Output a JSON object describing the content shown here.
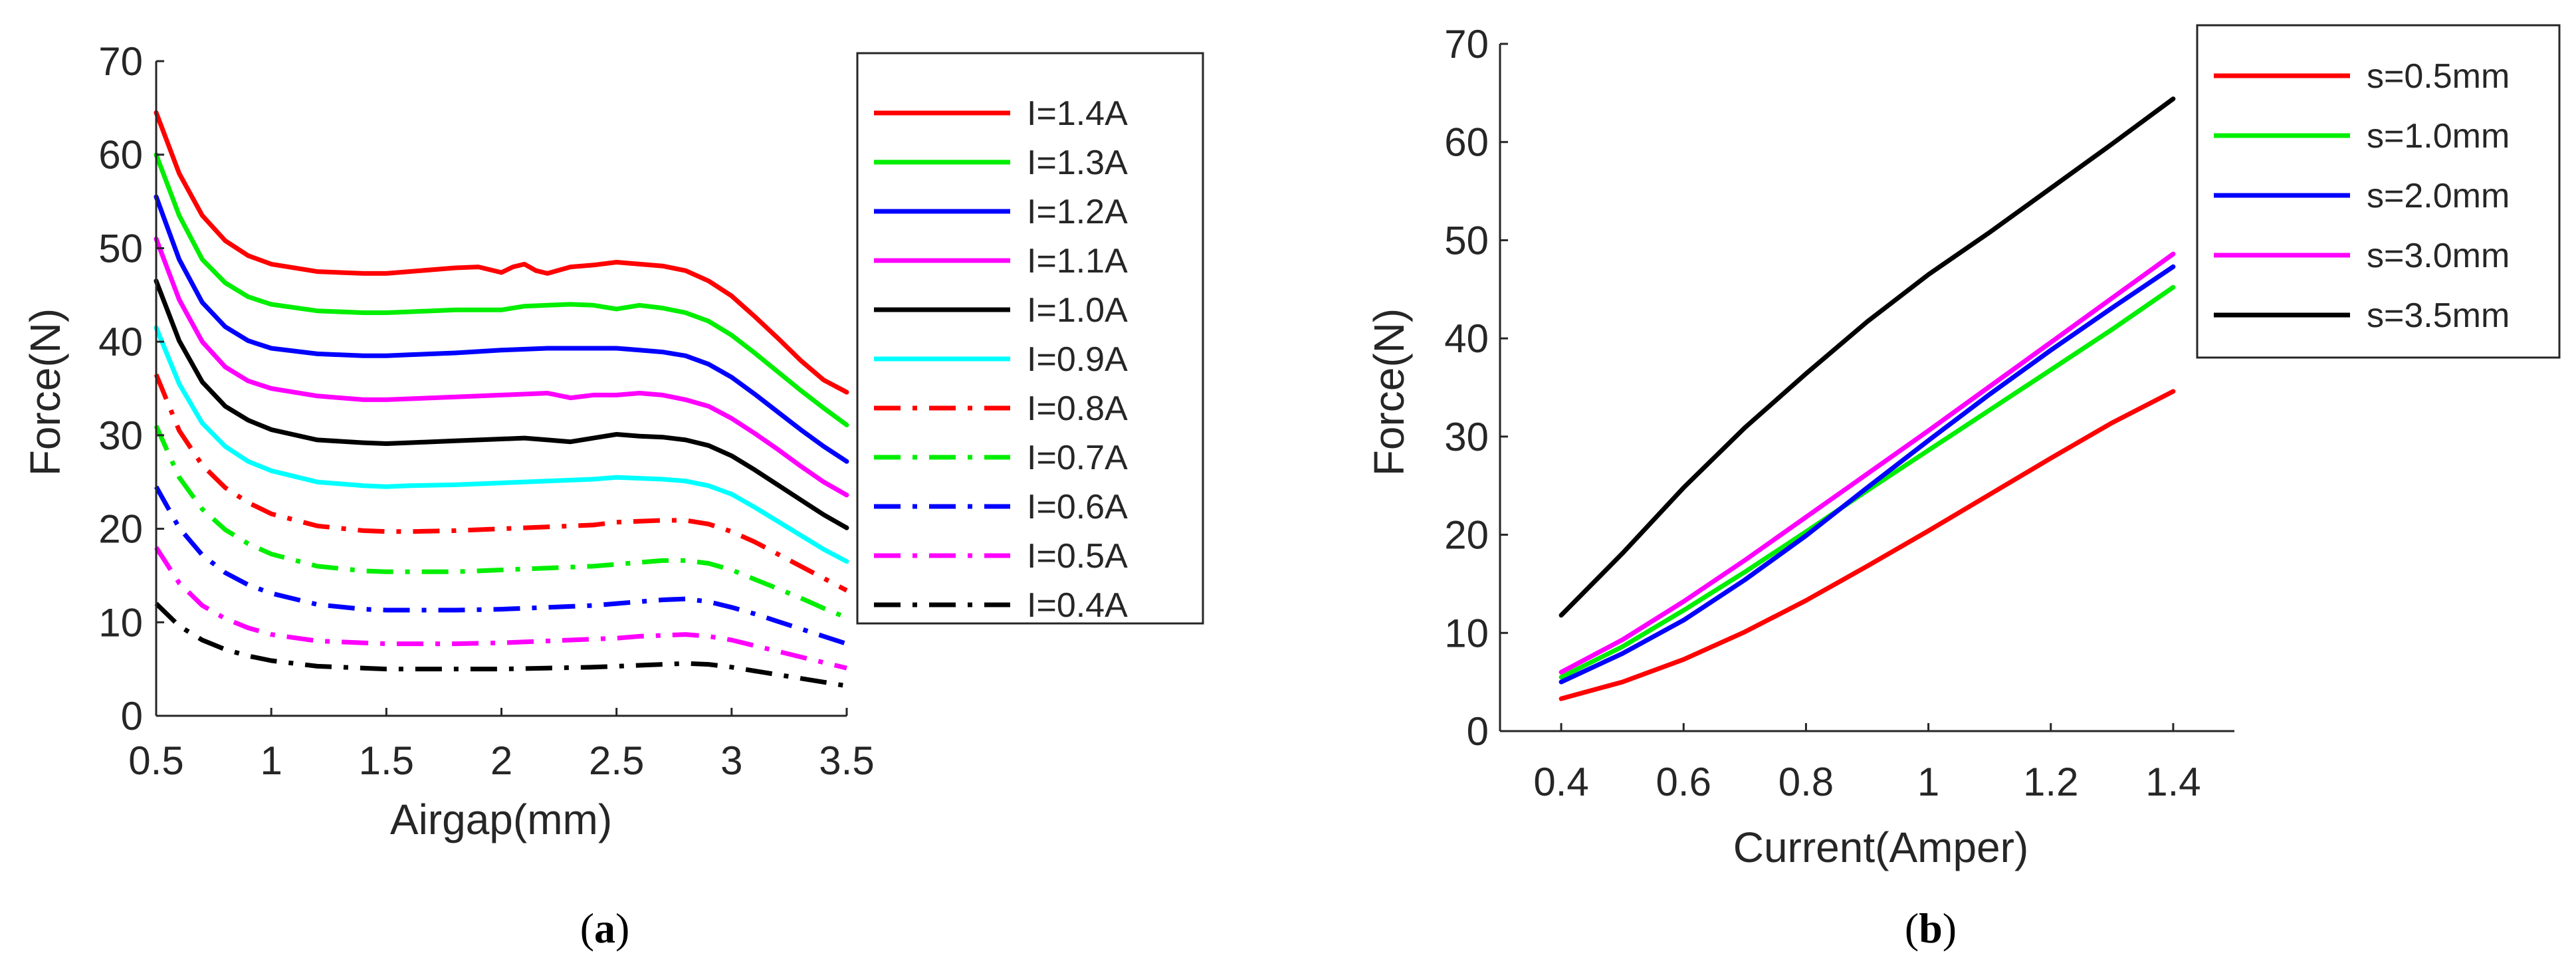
{
  "chart_data": [
    {
      "id": "a",
      "type": "line",
      "panel_label": "a",
      "title": "",
      "xlabel": "Airgap(mm)",
      "ylabel": "Force(N)",
      "xlim": [
        0.5,
        3.5
      ],
      "ylim": [
        0,
        70
      ],
      "xticks": [
        "0.5",
        "1",
        "1.5",
        "2",
        "2.5",
        "3",
        "3.5"
      ],
      "yticks": [
        "0",
        "10",
        "20",
        "30",
        "40",
        "50",
        "60",
        "70"
      ],
      "legend_position": "outside-right",
      "series": [
        {
          "name": "I=1.4A",
          "color": "#ff0000",
          "style": "solid",
          "x": [
            0.5,
            0.6,
            0.7,
            0.8,
            0.9,
            1,
            1.2,
            1.4,
            1.5,
            1.6,
            1.8,
            1.9,
            2,
            2.05,
            2.1,
            2.15,
            2.2,
            2.3,
            2.4,
            2.5,
            2.6,
            2.7,
            2.8,
            2.9,
            3,
            3.1,
            3.2,
            3.3,
            3.4,
            3.5
          ],
          "y": [
            64.5,
            58,
            53.5,
            50.8,
            49.2,
            48.3,
            47.5,
            47.3,
            47.3,
            47.5,
            47.9,
            48,
            47.4,
            48,
            48.3,
            47.6,
            47.3,
            48,
            48.2,
            48.5,
            48.3,
            48.1,
            47.6,
            46.5,
            44.9,
            42.7,
            40.4,
            38,
            35.9,
            34.6
          ]
        },
        {
          "name": "I=1.3A",
          "color": "#00ee00",
          "style": "solid",
          "x": [
            0.5,
            0.6,
            0.7,
            0.8,
            0.9,
            1,
            1.2,
            1.4,
            1.5,
            1.6,
            1.8,
            2,
            2.1,
            2.2,
            2.3,
            2.4,
            2.5,
            2.6,
            2.7,
            2.8,
            2.9,
            3,
            3.1,
            3.2,
            3.3,
            3.4,
            3.5
          ],
          "y": [
            60,
            53.5,
            48.8,
            46.3,
            44.8,
            44,
            43.3,
            43.1,
            43.1,
            43.2,
            43.4,
            43.4,
            43.8,
            43.9,
            44,
            43.9,
            43.5,
            43.9,
            43.6,
            43.1,
            42.2,
            40.7,
            38.8,
            36.8,
            34.8,
            32.9,
            31.1
          ]
        },
        {
          "name": "I=1.2A",
          "color": "#0000ff",
          "style": "solid",
          "x": [
            0.5,
            0.6,
            0.7,
            0.8,
            0.9,
            1,
            1.2,
            1.4,
            1.5,
            1.6,
            1.8,
            2,
            2.2,
            2.4,
            2.5,
            2.6,
            2.7,
            2.8,
            2.9,
            3,
            3.1,
            3.2,
            3.3,
            3.4,
            3.5
          ],
          "y": [
            55.5,
            48.8,
            44.2,
            41.6,
            40.1,
            39.3,
            38.7,
            38.5,
            38.5,
            38.6,
            38.8,
            39.1,
            39.3,
            39.3,
            39.3,
            39.1,
            38.9,
            38.5,
            37.6,
            36.2,
            34.4,
            32.5,
            30.6,
            28.8,
            27.2
          ]
        },
        {
          "name": "I=1.1A",
          "color": "#ff00ff",
          "style": "solid",
          "x": [
            0.5,
            0.6,
            0.7,
            0.8,
            0.9,
            1,
            1.2,
            1.4,
            1.5,
            1.6,
            1.8,
            2,
            2.2,
            2.3,
            2.4,
            2.5,
            2.6,
            2.7,
            2.8,
            2.9,
            3,
            3.1,
            3.2,
            3.3,
            3.4,
            3.5
          ],
          "y": [
            51,
            44.5,
            40,
            37.3,
            35.8,
            35,
            34.2,
            33.8,
            33.8,
            33.9,
            34.1,
            34.3,
            34.5,
            34,
            34.3,
            34.3,
            34.5,
            34.3,
            33.8,
            33.1,
            31.8,
            30.2,
            28.5,
            26.7,
            25,
            23.6
          ]
        },
        {
          "name": "I=1.0A",
          "color": "#000000",
          "style": "solid",
          "x": [
            0.5,
            0.6,
            0.7,
            0.8,
            0.9,
            1,
            1.2,
            1.4,
            1.5,
            1.6,
            1.8,
            2,
            2.1,
            2.2,
            2.3,
            2.4,
            2.5,
            2.6,
            2.7,
            2.8,
            2.9,
            3,
            3.1,
            3.2,
            3.3,
            3.4,
            3.5
          ],
          "y": [
            46.5,
            40.1,
            35.7,
            33.1,
            31.6,
            30.6,
            29.5,
            29.2,
            29.1,
            29.2,
            29.4,
            29.6,
            29.7,
            29.5,
            29.3,
            29.7,
            30.1,
            29.9,
            29.8,
            29.5,
            28.9,
            27.8,
            26.3,
            24.7,
            23.1,
            21.5,
            20.1
          ]
        },
        {
          "name": "I=0.9A",
          "color": "#00ffff",
          "style": "solid",
          "x": [
            0.5,
            0.6,
            0.7,
            0.8,
            0.9,
            1,
            1.2,
            1.4,
            1.5,
            1.6,
            1.8,
            2,
            2.2,
            2.4,
            2.5,
            2.6,
            2.7,
            2.8,
            2.9,
            3,
            3.1,
            3.2,
            3.3,
            3.4,
            3.5
          ],
          "y": [
            41.5,
            35.5,
            31.3,
            28.8,
            27.2,
            26.2,
            25,
            24.6,
            24.5,
            24.6,
            24.7,
            24.9,
            25.1,
            25.3,
            25.5,
            25.4,
            25.3,
            25.1,
            24.6,
            23.7,
            22.3,
            20.8,
            19.3,
            17.8,
            16.5
          ]
        },
        {
          "name": "I=0.8A",
          "color": "#ff0000",
          "style": "dashdot",
          "x": [
            0.5,
            0.6,
            0.7,
            0.8,
            0.9,
            1,
            1.2,
            1.4,
            1.5,
            1.6,
            1.8,
            2,
            2.2,
            2.4,
            2.5,
            2.6,
            2.7,
            2.8,
            2.9,
            3,
            3.1,
            3.2,
            3.3,
            3.4,
            3.5
          ],
          "y": [
            36.5,
            30.5,
            26.8,
            24.4,
            22.8,
            21.6,
            20.3,
            19.8,
            19.7,
            19.7,
            19.8,
            20,
            20.2,
            20.4,
            20.7,
            20.8,
            20.9,
            20.9,
            20.5,
            19.7,
            18.6,
            17.3,
            16,
            14.7,
            13.4
          ]
        },
        {
          "name": "I=0.7A",
          "color": "#00ee00",
          "style": "dashdot",
          "x": [
            0.5,
            0.6,
            0.7,
            0.8,
            0.9,
            1,
            1.2,
            1.4,
            1.5,
            1.6,
            1.8,
            2,
            2.2,
            2.4,
            2.5,
            2.6,
            2.7,
            2.8,
            2.9,
            3,
            3.1,
            3.2,
            3.3,
            3.4,
            3.5
          ],
          "y": [
            31,
            25.5,
            22.1,
            19.9,
            18.4,
            17.3,
            16,
            15.5,
            15.4,
            15.4,
            15.4,
            15.6,
            15.8,
            16,
            16.2,
            16.4,
            16.6,
            16.6,
            16.3,
            15.6,
            14.6,
            13.6,
            12.6,
            11.5,
            10.5
          ]
        },
        {
          "name": "I=0.6A",
          "color": "#0000ff",
          "style": "dashdot",
          "x": [
            0.5,
            0.6,
            0.7,
            0.8,
            0.9,
            1,
            1.2,
            1.4,
            1.5,
            1.6,
            1.8,
            2,
            2.2,
            2.4,
            2.5,
            2.6,
            2.7,
            2.8,
            2.9,
            3,
            3.1,
            3.2,
            3.3,
            3.4,
            3.5
          ],
          "y": [
            24.5,
            20.1,
            17.2,
            15.3,
            14,
            13.1,
            11.9,
            11.4,
            11.3,
            11.3,
            11.3,
            11.4,
            11.6,
            11.8,
            12,
            12.2,
            12.4,
            12.5,
            12.2,
            11.6,
            10.9,
            10.1,
            9.3,
            8.5,
            7.7
          ]
        },
        {
          "name": "I=0.5A",
          "color": "#ff00ff",
          "style": "dashdot",
          "x": [
            0.5,
            0.6,
            0.7,
            0.8,
            0.9,
            1,
            1.2,
            1.4,
            1.5,
            1.6,
            1.8,
            2,
            2.2,
            2.4,
            2.5,
            2.6,
            2.7,
            2.8,
            2.9,
            3,
            3.1,
            3.2,
            3.3,
            3.4,
            3.5
          ],
          "y": [
            18,
            14.2,
            11.8,
            10.4,
            9.4,
            8.7,
            8,
            7.8,
            7.7,
            7.7,
            7.7,
            7.8,
            8,
            8.2,
            8.3,
            8.5,
            8.6,
            8.7,
            8.5,
            8.1,
            7.5,
            6.9,
            6.3,
            5.7,
            5.1
          ]
        },
        {
          "name": "I=0.4A",
          "color": "#000000",
          "style": "dashdot",
          "x": [
            0.5,
            0.6,
            0.7,
            0.8,
            0.9,
            1,
            1.2,
            1.4,
            1.5,
            1.6,
            1.8,
            2,
            2.2,
            2.4,
            2.5,
            2.6,
            2.7,
            2.8,
            2.9,
            3,
            3.1,
            3.2,
            3.3,
            3.4,
            3.5
          ],
          "y": [
            12,
            9.6,
            8.1,
            7.1,
            6.4,
            5.9,
            5.3,
            5.1,
            5,
            5,
            5,
            5,
            5.1,
            5.2,
            5.3,
            5.4,
            5.5,
            5.6,
            5.5,
            5.2,
            4.8,
            4.4,
            4,
            3.6,
            3.2
          ]
        }
      ]
    },
    {
      "id": "b",
      "type": "line",
      "panel_label": "b",
      "title": "",
      "xlabel": "Current(Amper)",
      "ylabel": "Force(N)",
      "xlim": [
        0.3,
        1.5
      ],
      "ylim": [
        0,
        70
      ],
      "xticks": [
        "0.4",
        "0.6",
        "0.8",
        "1",
        "1.2",
        "1.4"
      ],
      "yticks": [
        "0",
        "10",
        "20",
        "30",
        "40",
        "50",
        "60",
        "70"
      ],
      "legend_position": "top-right",
      "series": [
        {
          "name": "s=0.5mm",
          "color": "#ff0000",
          "style": "solid",
          "x": [
            0.4,
            0.5,
            0.6,
            0.7,
            0.8,
            0.9,
            1,
            1.1,
            1.2,
            1.3,
            1.4
          ],
          "y": [
            3.3,
            5,
            7.3,
            10.1,
            13.3,
            16.8,
            20.4,
            24.1,
            27.8,
            31.4,
            34.6
          ]
        },
        {
          "name": "s=1.0mm",
          "color": "#00ee00",
          "style": "solid",
          "x": [
            0.4,
            0.5,
            0.6,
            0.7,
            0.8,
            0.9,
            1,
            1.1,
            1.2,
            1.3,
            1.4
          ],
          "y": [
            5.5,
            8.6,
            12.3,
            16.2,
            20.3,
            24.5,
            28.6,
            32.7,
            36.8,
            40.9,
            45.2
          ]
        },
        {
          "name": "s=2.0mm",
          "color": "#0000ff",
          "style": "solid",
          "x": [
            0.4,
            0.5,
            0.6,
            0.7,
            0.8,
            0.9,
            1,
            1.1,
            1.2,
            1.3,
            1.4
          ],
          "y": [
            5,
            7.9,
            11.3,
            15.4,
            19.9,
            24.8,
            29.6,
            34.3,
            38.8,
            43.1,
            47.3
          ]
        },
        {
          "name": "s=3.0mm",
          "color": "#ff00ff",
          "style": "solid",
          "x": [
            0.4,
            0.5,
            0.6,
            0.7,
            0.8,
            0.9,
            1,
            1.1,
            1.2,
            1.3,
            1.4
          ],
          "y": [
            6,
            9.3,
            13.2,
            17.4,
            21.8,
            26.2,
            30.6,
            35.1,
            39.6,
            44.1,
            48.6
          ]
        },
        {
          "name": "s=3.5mm",
          "color": "#000000",
          "style": "solid",
          "x": [
            0.4,
            0.5,
            0.6,
            0.7,
            0.8,
            0.9,
            1,
            1.1,
            1.2,
            1.3,
            1.4
          ],
          "y": [
            11.8,
            18.1,
            24.8,
            30.9,
            36.4,
            41.7,
            46.5,
            50.8,
            55.3,
            59.8,
            64.4
          ]
        }
      ]
    }
  ]
}
